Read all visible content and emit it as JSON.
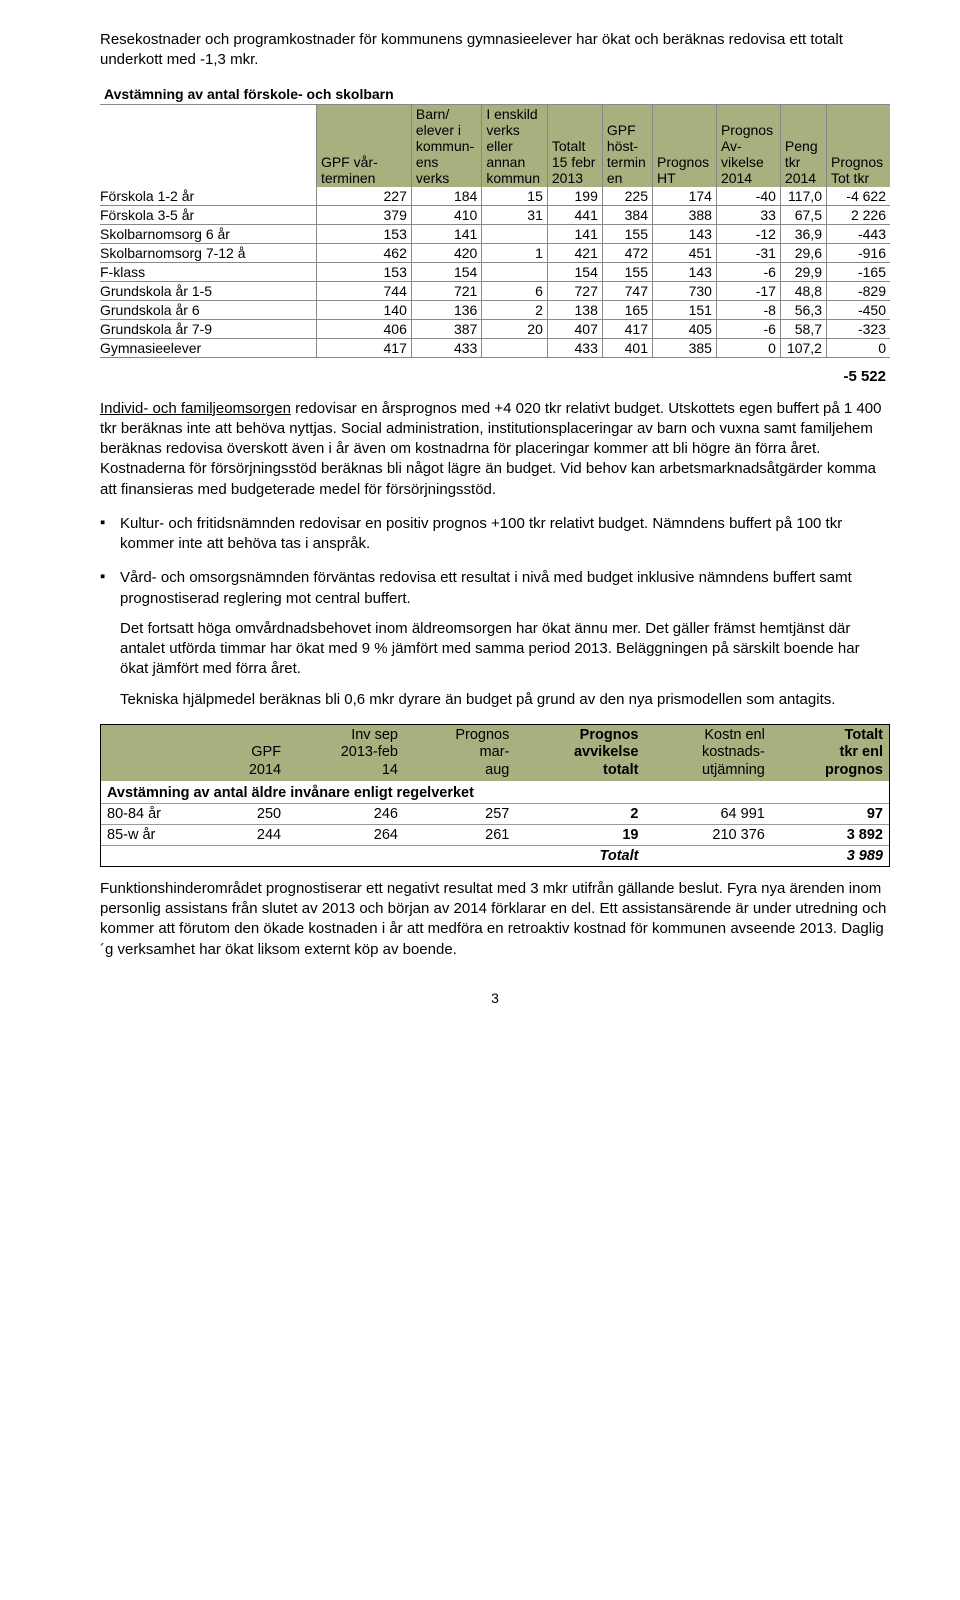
{
  "intro": "Resekostnader och programkostnader för kommunens gymnasieelever har ökat och beräknas redovisa ett totalt underkott med -1,3 mkr.",
  "table1": {
    "title": "Avstämning av antal förskole- och skolbarn",
    "headers": [
      "",
      "GPF vår-\nterminen",
      "Barn/\nelever i\nkommun-\nens\nverks",
      "I enskild\nverks\neller\nannan\nkommun",
      "Totalt\n15 febr\n2013",
      "GPF\nhöst-\ntermin\nen",
      "Prognos\nHT",
      "Prognos\nAv-\nvikelse\n2014",
      "Peng\ntkr\n2014",
      "Prognos\nTot tkr"
    ],
    "header_bg": "#a8b080",
    "rows": [
      [
        "Förskola 1-2 år",
        "227",
        "184",
        "15",
        "199",
        "225",
        "174",
        "-40",
        "117,0",
        "-4 622"
      ],
      [
        "Förskola 3-5 år",
        "379",
        "410",
        "31",
        "441",
        "384",
        "388",
        "33",
        "67,5",
        "2 226"
      ],
      [
        "Skolbarnomsorg 6 år",
        "153",
        "141",
        "",
        "141",
        "155",
        "143",
        "-12",
        "36,9",
        "-443"
      ],
      [
        "Skolbarnomsorg 7-12 å",
        "462",
        "420",
        "1",
        "421",
        "472",
        "451",
        "-31",
        "29,6",
        "-916"
      ],
      [
        "F-klass",
        "153",
        "154",
        "",
        "154",
        "155",
        "143",
        "-6",
        "29,9",
        "-165"
      ],
      [
        "Grundskola år 1-5",
        "744",
        "721",
        "6",
        "727",
        "747",
        "730",
        "-17",
        "48,8",
        "-829"
      ],
      [
        "Grundskola år 6",
        "140",
        "136",
        "2",
        "138",
        "165",
        "151",
        "-8",
        "56,3",
        "-450"
      ],
      [
        "Grundskola år 7-9",
        "406",
        "387",
        "20",
        "407",
        "417",
        "405",
        "-6",
        "58,7",
        "-323"
      ],
      [
        "Gymnasieelever",
        "417",
        "433",
        "",
        "433",
        "401",
        "385",
        "0",
        "107,2",
        "0"
      ]
    ],
    "sum_total": "-5 522"
  },
  "mid_paras": {
    "ifo_lead": "Individ- och familjeomsorgen",
    "ifo_rest": " redovisar en årsprognos med +4 020 tkr relativt budget. Utskottets egen buffert på 1 400 tkr beräknas inte att behöva nyttjas. Social administration, institutionsplaceringar av barn och vuxna samt familjehem beräknas redovisa överskott även i år även om kostnadrna för placeringar kommer att bli högre än förra året. Kostnaderna för försörjningsstöd beräknas bli något lägre än budget. Vid behov kan arbetsmarknadsåtgärder komma att finansieras med budgeterade medel för försörjningsstöd.",
    "kf": "Kultur- och fritidsnämnden redovisar en positiv prognos +100 tkr relativt budget. Nämndens buffert på 100 tkr kommer inte att behöva tas i anspråk.",
    "vo1": "Vård- och omsorgsnämnden förväntas redovisa ett resultat i nivå med budget inklusive nämndens buffert samt prognostiserad reglering mot central buffert.",
    "vo2": "Det fortsatt höga omvårdnadsbehovet inom äldreomsorgen har ökat ännu mer. Det gäller främst hemtjänst där antalet utförda timmar har ökat med 9 % jämfört med samma period 2013. Beläggningen på särskilt boende har ökat jämfört med förra året.",
    "vo3": "Tekniska hjälpmedel beräknas bli 0,6 mkr dyrare än budget på grund av den nya prismodellen som antagits."
  },
  "table2": {
    "title": "Avstämning av antal äldre invånare enligt regelverket",
    "headers": [
      "",
      "GPF\n2014",
      "Inv sep\n2013-feb\n14",
      "Prognos\nmar-\naug",
      "Prognos\navvikelse\ntotalt",
      "Kostn enl\nkostnads-\nutjämning",
      "Totalt\ntkr enl\nprognos"
    ],
    "header_bg": "#a8b080",
    "rows": [
      [
        "80-84 år",
        "250",
        "246",
        "257",
        "2",
        "64 991",
        "97"
      ],
      [
        "85-w år",
        "244",
        "264",
        "261",
        "19",
        "210 376",
        "3 892"
      ]
    ],
    "total_label": "Totalt",
    "total_value": "3 989"
  },
  "final_para": "Funktionshinderområdet prognostiserar ett negativt resultat med 3 mkr utifrån gällande beslut. Fyra nya ärenden inom personlig assistans från slutet av 2013 och början av 2014 förklarar en del. Ett assistansärende är under utredning och kommer att förutom den ökade kostnaden i år att medföra en retroaktiv kostnad för kommunen avseende 2013. Daglig´g verksamhet har ökat liksom externt köp av boende.",
  "page": "3"
}
